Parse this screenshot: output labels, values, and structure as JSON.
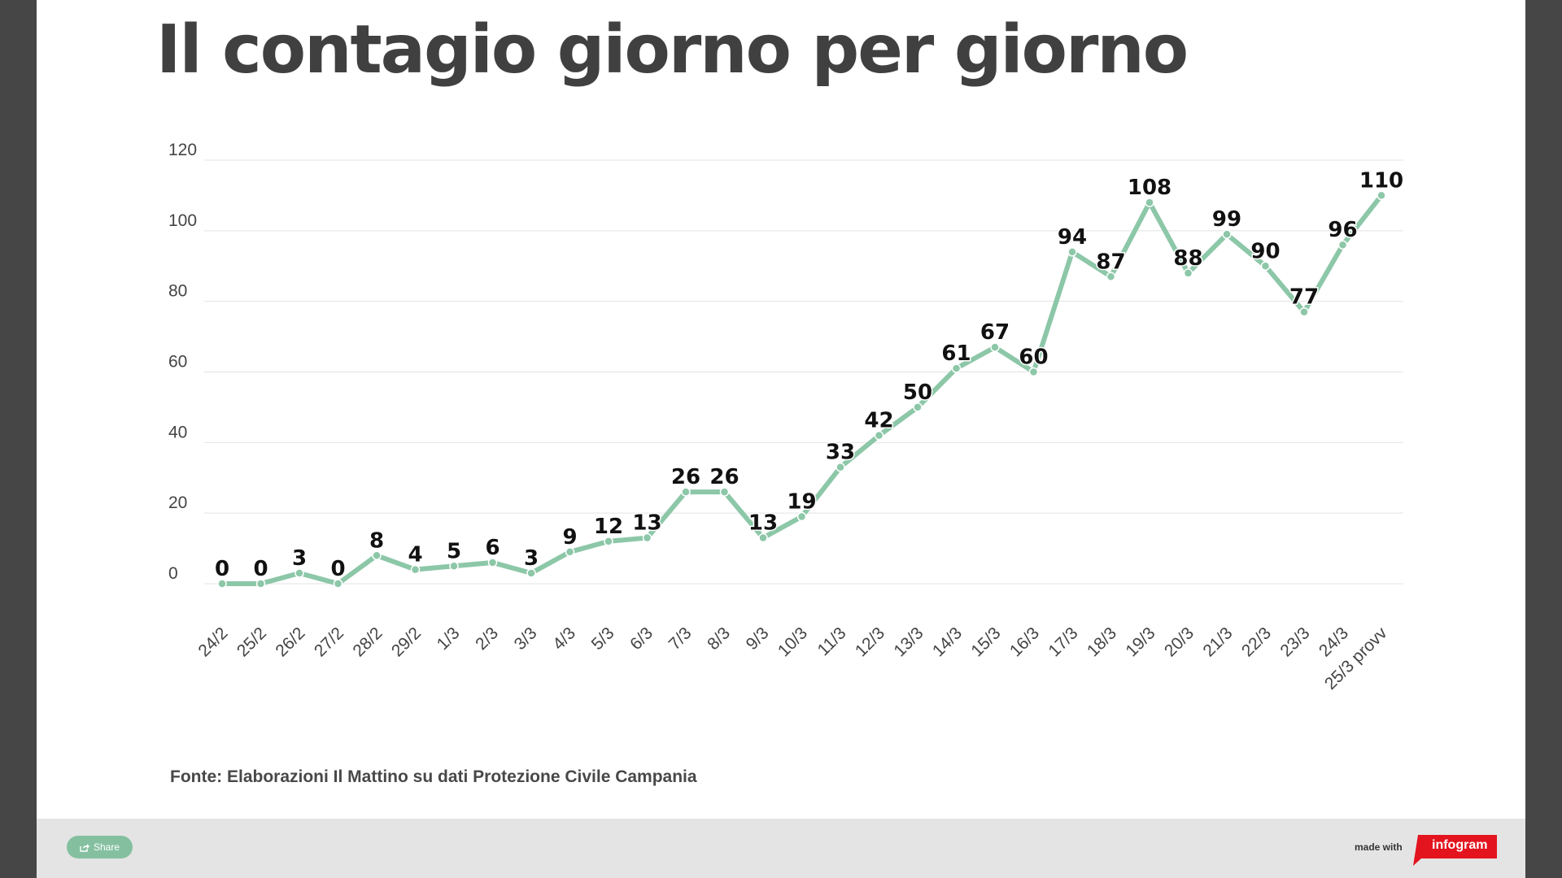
{
  "title": "Il contagio giorno per giorno",
  "source": "Fonte: Elaborazioni Il Mattino su dati Protezione Civile Campania",
  "footer": {
    "share_label": "Share",
    "share_icon": "share-icon",
    "made_with": "made with",
    "logo_text": "infogram"
  },
  "colors": {
    "line": "#8cc7a8",
    "grid": "#e3e3e3",
    "text": "#404040",
    "logo": "#e3141e"
  },
  "chart_data": {
    "type": "line",
    "categories": [
      "24/2",
      "25/2",
      "26/2",
      "27/2",
      "28/2",
      "29/2",
      "1/3",
      "2/3",
      "3/3",
      "4/3",
      "5/3",
      "6/3",
      "7/3",
      "8/3",
      "9/3",
      "10/3",
      "11/3",
      "12/3",
      "13/3",
      "14/3",
      "15/3",
      "16/3",
      "17/3",
      "18/3",
      "19/3",
      "20/3",
      "21/3",
      "22/3",
      "23/3",
      "24/3",
      "25/3 provv"
    ],
    "values": [
      0,
      0,
      3,
      0,
      8,
      4,
      5,
      6,
      3,
      9,
      12,
      13,
      26,
      26,
      13,
      19,
      33,
      42,
      50,
      61,
      67,
      60,
      94,
      87,
      108,
      88,
      99,
      90,
      77,
      96,
      110
    ],
    "ylim": [
      0,
      120
    ],
    "yticks": [
      0,
      20,
      40,
      60,
      80,
      100,
      120
    ],
    "grid": true,
    "data_labels": true,
    "xlabel": "",
    "ylabel": ""
  }
}
